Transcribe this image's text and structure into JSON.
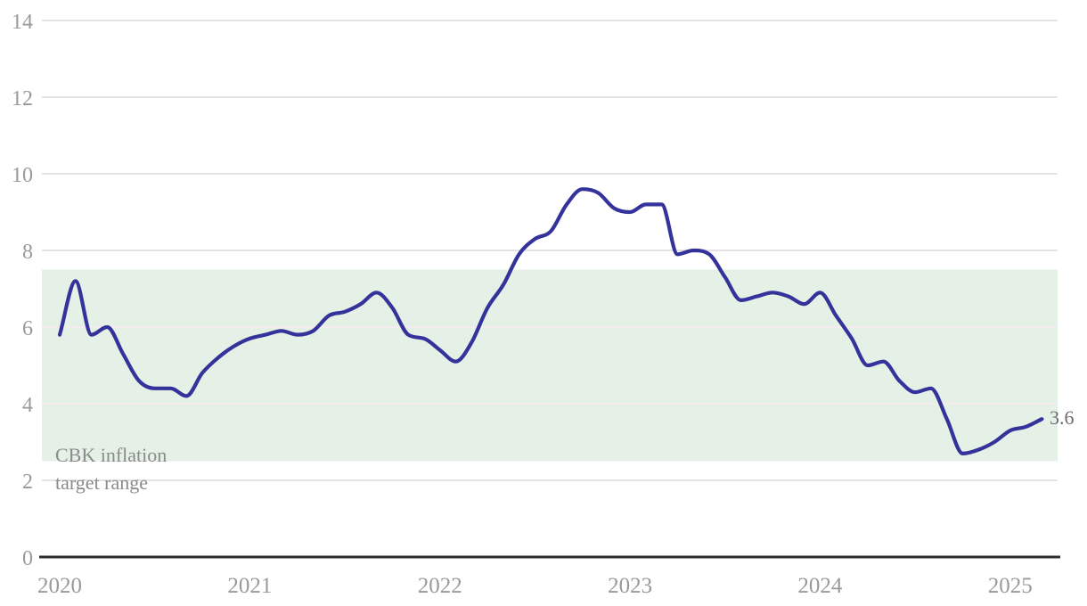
{
  "chart_data": {
    "type": "line",
    "title": "",
    "x_start": "2020-01",
    "x_interval": "monthly",
    "x_end": "2025-03",
    "values": [
      5.8,
      7.2,
      5.8,
      6.0,
      5.3,
      4.6,
      4.4,
      4.4,
      4.2,
      4.8,
      5.2,
      5.5,
      5.7,
      5.8,
      5.9,
      5.8,
      5.9,
      6.3,
      6.4,
      6.6,
      6.9,
      6.5,
      5.8,
      5.7,
      5.4,
      5.1,
      5.6,
      6.5,
      7.1,
      7.9,
      8.3,
      8.5,
      9.2,
      9.6,
      9.5,
      9.1,
      9.0,
      9.2,
      9.2,
      7.9,
      8.0,
      7.9,
      7.3,
      6.7,
      6.8,
      6.9,
      6.8,
      6.6,
      6.9,
      6.3,
      5.7,
      5.0,
      5.1,
      4.6,
      4.3,
      4.4,
      3.6,
      2.7,
      2.8,
      3.0,
      3.3,
      3.4,
      3.6
    ],
    "x_tick_labels": [
      "2020",
      "2021",
      "2022",
      "2023",
      "2024",
      "2025"
    ],
    "y_ticks": [
      0,
      2,
      4,
      6,
      8,
      10,
      12,
      14
    ],
    "ylim": [
      0,
      14.3
    ],
    "grid": true,
    "legend_position": "none",
    "target_range": {
      "low": 2.5,
      "high": 7.5,
      "label_line1": "CBK inflation",
      "label_line2": "target range"
    },
    "end_label": "3.6",
    "colors": {
      "line": "#33339b",
      "band": "#e5f1e6",
      "axis": "#2b2b2b",
      "grid_on_white": "#e6e2e4",
      "grid_on_band": "#f3edf0",
      "tick_text": "#9a9a9a"
    }
  }
}
